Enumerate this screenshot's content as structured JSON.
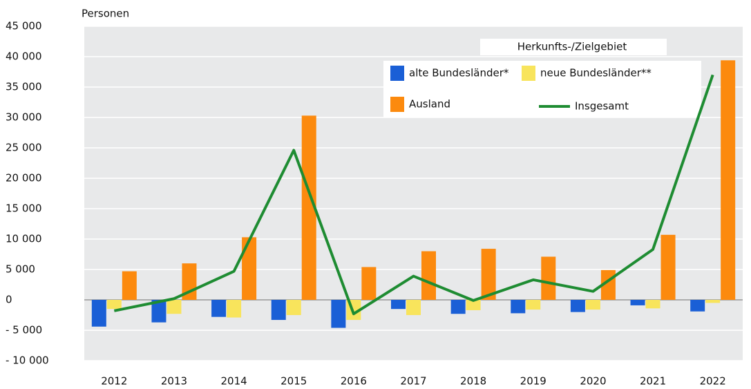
{
  "chart_data": {
    "type": "bar",
    "y_label": "Personen",
    "legend_title": "Herkunfts-/Zielgebiet",
    "categories": [
      "2012",
      "2013",
      "2014",
      "2015",
      "2016",
      "2017",
      "2018",
      "2019",
      "2020",
      "2021",
      "2022"
    ],
    "series": [
      {
        "name": "alte Bundesländer*",
        "color": "#1a5fd6",
        "type": "bar",
        "values": [
          -4400,
          -3700,
          -2800,
          -3300,
          -4600,
          -1500,
          -2300,
          -2200,
          -2000,
          -900,
          -1900
        ]
      },
      {
        "name": "neue Bundesländer**",
        "color": "#f8e45c",
        "type": "bar",
        "values": [
          -1500,
          -2300,
          -2900,
          -2500,
          -3300,
          -2500,
          -1700,
          -1600,
          -1600,
          -1400,
          -500
        ]
      },
      {
        "name": "Ausland",
        "color": "#fc8a0e",
        "type": "bar",
        "values": [
          4700,
          6000,
          10300,
          30300,
          5400,
          8000,
          8400,
          7100,
          4900,
          10700,
          39400
        ]
      },
      {
        "name": "Insgesamt",
        "color": "#1e8c32",
        "type": "line",
        "values": [
          -1800,
          200,
          4700,
          24600,
          -2300,
          3900,
          -100,
          3300,
          1400,
          8300,
          37000
        ]
      }
    ],
    "ylim": [
      -10000,
      45000
    ],
    "yticks": [
      {
        "value": -10000,
        "label": "- 10 000"
      },
      {
        "value": -5000,
        "label": "- 5 000"
      },
      0,
      {
        "value": 5000,
        "label": "5 000"
      },
      {
        "value": 10000,
        "label": "10 000"
      },
      {
        "value": 15000,
        "label": "15 000"
      },
      {
        "value": 20000,
        "label": "20 000"
      },
      {
        "value": 25000,
        "label": "25 000"
      },
      {
        "value": 30000,
        "label": "30 000"
      },
      {
        "value": 35000,
        "label": "35 000"
      },
      {
        "value": 40000,
        "label": "40 000"
      },
      {
        "value": 45000,
        "label": "45 000"
      }
    ],
    "grid": true
  }
}
